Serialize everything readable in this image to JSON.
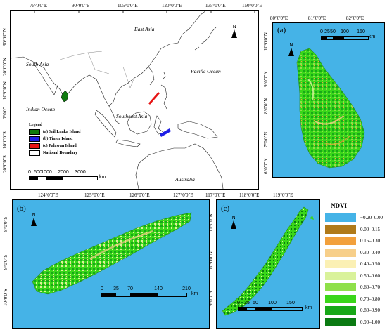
{
  "panel_main": {
    "top_ticks": [
      "75°0'0\"E",
      "90°0'0\"E",
      "105°0'0\"E",
      "120°0'0\"E",
      "135°0'0\"E",
      "150°0'0\"E"
    ],
    "left_ticks": [
      "30°0'0\"N",
      "20°0'0\"N",
      "10°0'0\"N",
      "0°0'0\"",
      "10°0'0\"S",
      "20°0'0\"S",
      "30°0'0\"S"
    ],
    "places": {
      "east_asia": "East Asia",
      "south_asia": "South Asia",
      "pacific": "Pacific Ocean",
      "indian": "Indian Ocean",
      "southeast_asia": "Southeast Asia",
      "australia": "Australia"
    },
    "north": "N",
    "legend": {
      "title": "Legend",
      "items": [
        {
          "label": "(a) Sril Lanka Island",
          "color": "#0f7a0f"
        },
        {
          "label": "(b) Timor Island",
          "color": "#1e1ee6"
        },
        {
          "label": "(c) Palawan Island",
          "color": "#e61414"
        },
        {
          "label": "National Boundary",
          "color": "#ffffff"
        }
      ]
    },
    "scale": {
      "ticks": [
        "0",
        "500",
        "1000",
        "2000",
        "3000"
      ],
      "unit": "km"
    }
  },
  "panel_a": {
    "label": "(a)",
    "top_ticks": [
      "80°0'0\"E",
      "81°0'0\"E",
      "82°0'0\"E"
    ],
    "left_ticks": [
      "10°0'0\"N",
      "9°0'0\"N",
      "8°0'0\"N",
      "7°0'0\"N",
      "6°0'0\"N"
    ],
    "north": "N",
    "scale": {
      "ticks": [
        "0",
        "25",
        "50",
        "100",
        "150"
      ],
      "unit": "km"
    }
  },
  "panel_b": {
    "label": "(b)",
    "top_ticks": [
      "124°0'0\"E",
      "125°0'0\"E",
      "126°0'0\"E",
      "127°0'0\"E"
    ],
    "left_ticks": [
      "8°0'0\"S",
      "9°0'0\"S",
      "10°0'0\"S"
    ],
    "north": "N",
    "scale": {
      "ticks": [
        "0",
        "35",
        "70",
        "140",
        "210"
      ],
      "unit": "km"
    }
  },
  "panel_c": {
    "label": "(c)",
    "top_ticks": [
      "117°0'0\"E",
      "118°0'0\"E",
      "119°0'0\"E"
    ],
    "left_ticks": [
      "11°0'0\"N",
      "10°0'0\"N",
      "9°0'0\"N"
    ],
    "north": "N",
    "scale": {
      "ticks": [
        "0",
        "25",
        "50",
        "100",
        "150"
      ],
      "unit": "km"
    }
  },
  "ndvi_legend": {
    "title": "NDVI",
    "classes": [
      {
        "label": "−0.20–0.00",
        "color": "#45b3e7"
      },
      {
        "label": "0.00–0.15",
        "color": "#b07a1a"
      },
      {
        "label": "0.15–0.30",
        "color": "#f2a03c"
      },
      {
        "label": "0.30–0.40",
        "color": "#f7cf8a"
      },
      {
        "label": "0.40–0.50",
        "color": "#fbf0b4"
      },
      {
        "label": "0.50–0.60",
        "color": "#d9f29a"
      },
      {
        "label": "0.60–0.70",
        "color": "#8fe04a"
      },
      {
        "label": "0.70–0.80",
        "color": "#3ad61a"
      },
      {
        "label": "0.80–0.90",
        "color": "#18a818"
      },
      {
        "label": "0.90–1.00",
        "color": "#0b7a12"
      }
    ]
  }
}
